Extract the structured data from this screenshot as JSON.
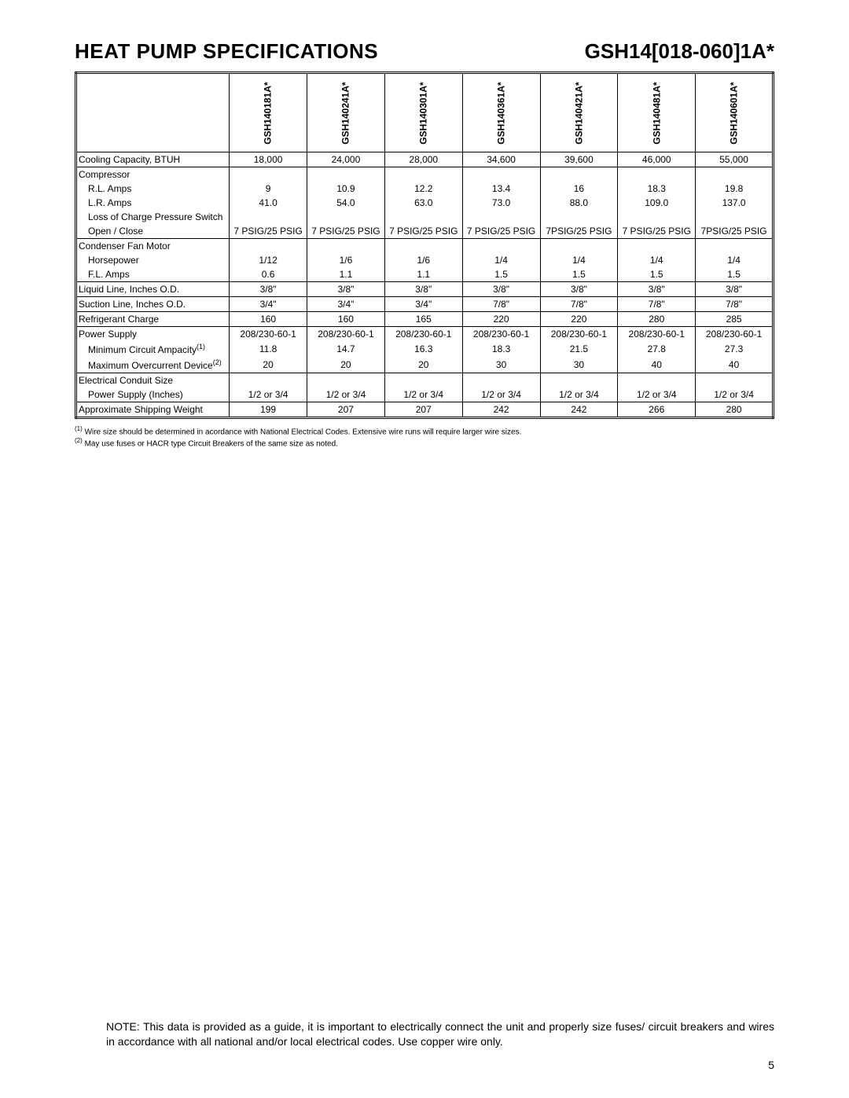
{
  "header": {
    "title_left": "HEAT PUMP SPECIFICATIONS",
    "title_right": "GSH14[018-060]1A*"
  },
  "table": {
    "column_headers": [
      "GSH140181A*",
      "GSH140241A*",
      "GSH140301A*",
      "GSH140361A*",
      "GSH140421A*",
      "GSH140481A*",
      "GSH140601A*"
    ],
    "rows": [
      {
        "label": "Cooling Capacity, BTUH",
        "indent": 0,
        "section_start": false,
        "vals": [
          "18,000",
          "24,000",
          "28,000",
          "34,600",
          "39,600",
          "46,000",
          "55,000"
        ]
      },
      {
        "label": "Compressor",
        "indent": 0,
        "section_start": true,
        "vals": [
          "",
          "",
          "",
          "",
          "",
          "",
          ""
        ]
      },
      {
        "label": "R.L. Amps",
        "indent": 1,
        "section_start": false,
        "vals": [
          "9",
          "10.9",
          "12.2",
          "13.4",
          "16",
          "18.3",
          "19.8"
        ]
      },
      {
        "label": "L.R. Amps",
        "indent": 1,
        "section_start": false,
        "vals": [
          "41.0",
          "54.0",
          "63.0",
          "73.0",
          "88.0",
          "109.0",
          "137.0"
        ]
      },
      {
        "label": "Loss of Charge Pressure Switch",
        "indent": 1,
        "section_start": false,
        "vals": [
          "",
          "",
          "",
          "",
          "",
          "",
          ""
        ]
      },
      {
        "label": "Open / Close",
        "indent": 2,
        "section_start": false,
        "vals": [
          "7 PSIG/25 PSIG",
          "7 PSIG/25 PSIG",
          "7 PSIG/25 PSIG",
          "7 PSIG/25 PSIG",
          "7PSIG/25 PSIG",
          "7 PSIG/25 PSIG",
          "7PSIG/25 PSIG"
        ]
      },
      {
        "label": "Condenser Fan Motor",
        "indent": 0,
        "section_start": true,
        "vals": [
          "",
          "",
          "",
          "",
          "",
          "",
          ""
        ]
      },
      {
        "label": "Horsepower",
        "indent": 1,
        "section_start": false,
        "vals": [
          "1/12",
          "1/6",
          "1/6",
          "1/4",
          "1/4",
          "1/4",
          "1/4"
        ]
      },
      {
        "label": "F.L. Amps",
        "indent": 1,
        "section_start": false,
        "vals": [
          "0.6",
          "1.1",
          "1.1",
          "1.5",
          "1.5",
          "1.5",
          "1.5"
        ]
      },
      {
        "label": "Liquid Line, Inches O.D.",
        "indent": 0,
        "section_start": true,
        "vals": [
          "3/8\"",
          "3/8\"",
          "3/8\"",
          "3/8\"",
          "3/8\"",
          "3/8\"",
          "3/8\""
        ]
      },
      {
        "label": "Suction Line, Inches O.D.",
        "indent": 0,
        "section_start": true,
        "vals": [
          "3/4\"",
          "3/4\"",
          "3/4\"",
          "7/8\"",
          "7/8\"",
          "7/8\"",
          "7/8\""
        ]
      },
      {
        "label": "Refrigerant Charge",
        "indent": 0,
        "section_start": true,
        "vals": [
          "160",
          "160",
          "165",
          "220",
          "220",
          "280",
          "285"
        ]
      },
      {
        "label": "Power Supply",
        "indent": 0,
        "section_start": true,
        "vals": [
          "208/230-60-1",
          "208/230-60-1",
          "208/230-60-1",
          "208/230-60-1",
          "208/230-60-1",
          "208/230-60-1",
          "208/230-60-1"
        ]
      },
      {
        "label": "Minimum Circuit Ampacity",
        "indent": 1,
        "section_start": false,
        "sup": "(1)",
        "vals": [
          "11.8",
          "14.7",
          "16.3",
          "18.3",
          "21.5",
          "27.8",
          "27.3"
        ]
      },
      {
        "label": "Maximum Overcurrent Device",
        "indent": 1,
        "section_start": false,
        "sup": "(2)",
        "vals": [
          "20",
          "20",
          "20",
          "30",
          "30",
          "40",
          "40"
        ]
      },
      {
        "label": "Electrical Conduit Size",
        "indent": 0,
        "section_start": true,
        "vals": [
          "",
          "",
          "",
          "",
          "",
          "",
          ""
        ]
      },
      {
        "label": "Power Supply (Inches)",
        "indent": 1,
        "section_start": false,
        "vals": [
          "1/2 or 3/4",
          "1/2 or 3/4",
          "1/2 or 3/4",
          "1/2 or 3/4",
          "1/2 or 3/4",
          "1/2 or 3/4",
          "1/2 or 3/4"
        ]
      },
      {
        "label": "Approximate Shipping Weight",
        "indent": 0,
        "section_start": true,
        "vals": [
          "199",
          "207",
          "207",
          "242",
          "242",
          "266",
          "280"
        ]
      }
    ]
  },
  "footnotes": {
    "fn1": "Wire size should be determined in acordance with National Electrical Codes. Extensive wire runs will require larger wire sizes.",
    "fn2": "May use fuses or HACR type Circuit Breakers of the same size as noted."
  },
  "note": "NOTE: This data is provided as a guide, it is important to electrically connect the unit and properly size fuses/ circuit breakers and wires in accordance with all national and/or local electrical codes.  Use copper wire only.",
  "page_number": "5",
  "style": {
    "background_color": "#ffffff",
    "text_color": "#000000",
    "border_color": "#000000",
    "title_fontsize": 26,
    "body_fontsize": 12,
    "footnote_fontsize": 10,
    "note_fontsize": 14,
    "col_widths": [
      "22%",
      "11.14%",
      "11.14%",
      "11.14%",
      "11.14%",
      "11.14%",
      "11.14%",
      "11.14%"
    ]
  }
}
